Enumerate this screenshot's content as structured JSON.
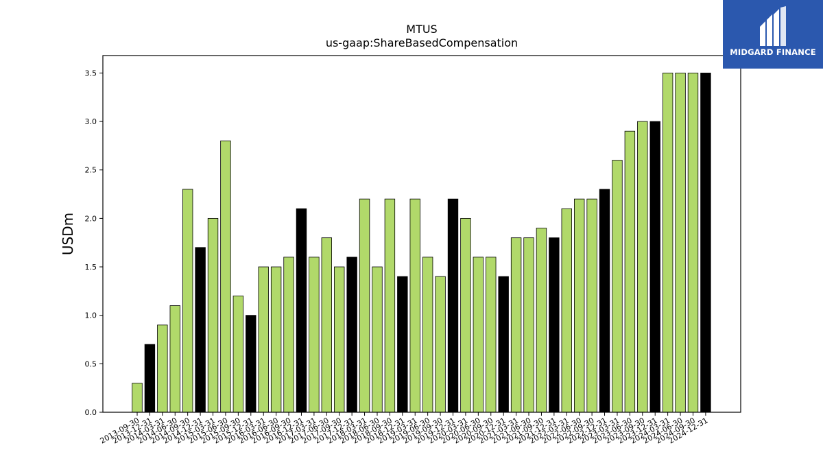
{
  "chart_data": {
    "type": "bar",
    "title": "MTUS",
    "subtitle": "us-gaap:ShareBasedCompensation",
    "xlabel": "",
    "ylabel": "USDm",
    "ylim": [
      0,
      3.68
    ],
    "yticks": [
      "0.0",
      "0.5",
      "1.0",
      "1.5",
      "2.0",
      "2.5",
      "3.0",
      "3.5"
    ],
    "grid": false,
    "legend": "none",
    "colors": {
      "quarter": "#b1d96a",
      "year_end": "#000000"
    },
    "categories": [
      "2013-09-30",
      "2013-12-31",
      "2014-03-31",
      "2014-06-30",
      "2014-09-30",
      "2014-12-31",
      "2015-03-31",
      "2015-06-30",
      "2015-09-30",
      "2015-12-31",
      "2016-03-31",
      "2016-06-30",
      "2016-09-30",
      "2016-12-31",
      "2017-03-31",
      "2017-06-30",
      "2017-09-30",
      "2017-12-31",
      "2018-03-31",
      "2018-06-30",
      "2018-09-30",
      "2018-12-31",
      "2019-03-31",
      "2019-06-30",
      "2019-09-30",
      "2019-12-31",
      "2020-03-31",
      "2020-06-30",
      "2020-09-30",
      "2020-12-31",
      "2021-03-31",
      "2021-06-30",
      "2021-09-30",
      "2021-12-31",
      "2022-03-31",
      "2022-06-30",
      "2022-09-30",
      "2022-12-31",
      "2023-03-31",
      "2023-06-30",
      "2023-09-30",
      "2023-12-31",
      "2024-03-31",
      "2024-06-30",
      "2024-09-30",
      "2024-12-31"
    ],
    "values": [
      0.3,
      0.7,
      0.9,
      1.1,
      2.3,
      1.7,
      2.0,
      2.8,
      1.2,
      1.0,
      1.5,
      1.5,
      1.6,
      2.1,
      1.6,
      1.8,
      1.5,
      1.6,
      2.2,
      1.5,
      2.2,
      1.4,
      2.2,
      1.6,
      1.4,
      2.2,
      2.0,
      1.6,
      1.6,
      1.4,
      1.8,
      1.8,
      1.9,
      1.8,
      2.1,
      2.2,
      2.2,
      2.3,
      2.6,
      2.9,
      3.0,
      3.0,
      3.5,
      3.5,
      3.5,
      3.5
    ]
  },
  "logo": {
    "text": "MIDGARD FINANCE",
    "icon": "midgard-logo-icon"
  }
}
